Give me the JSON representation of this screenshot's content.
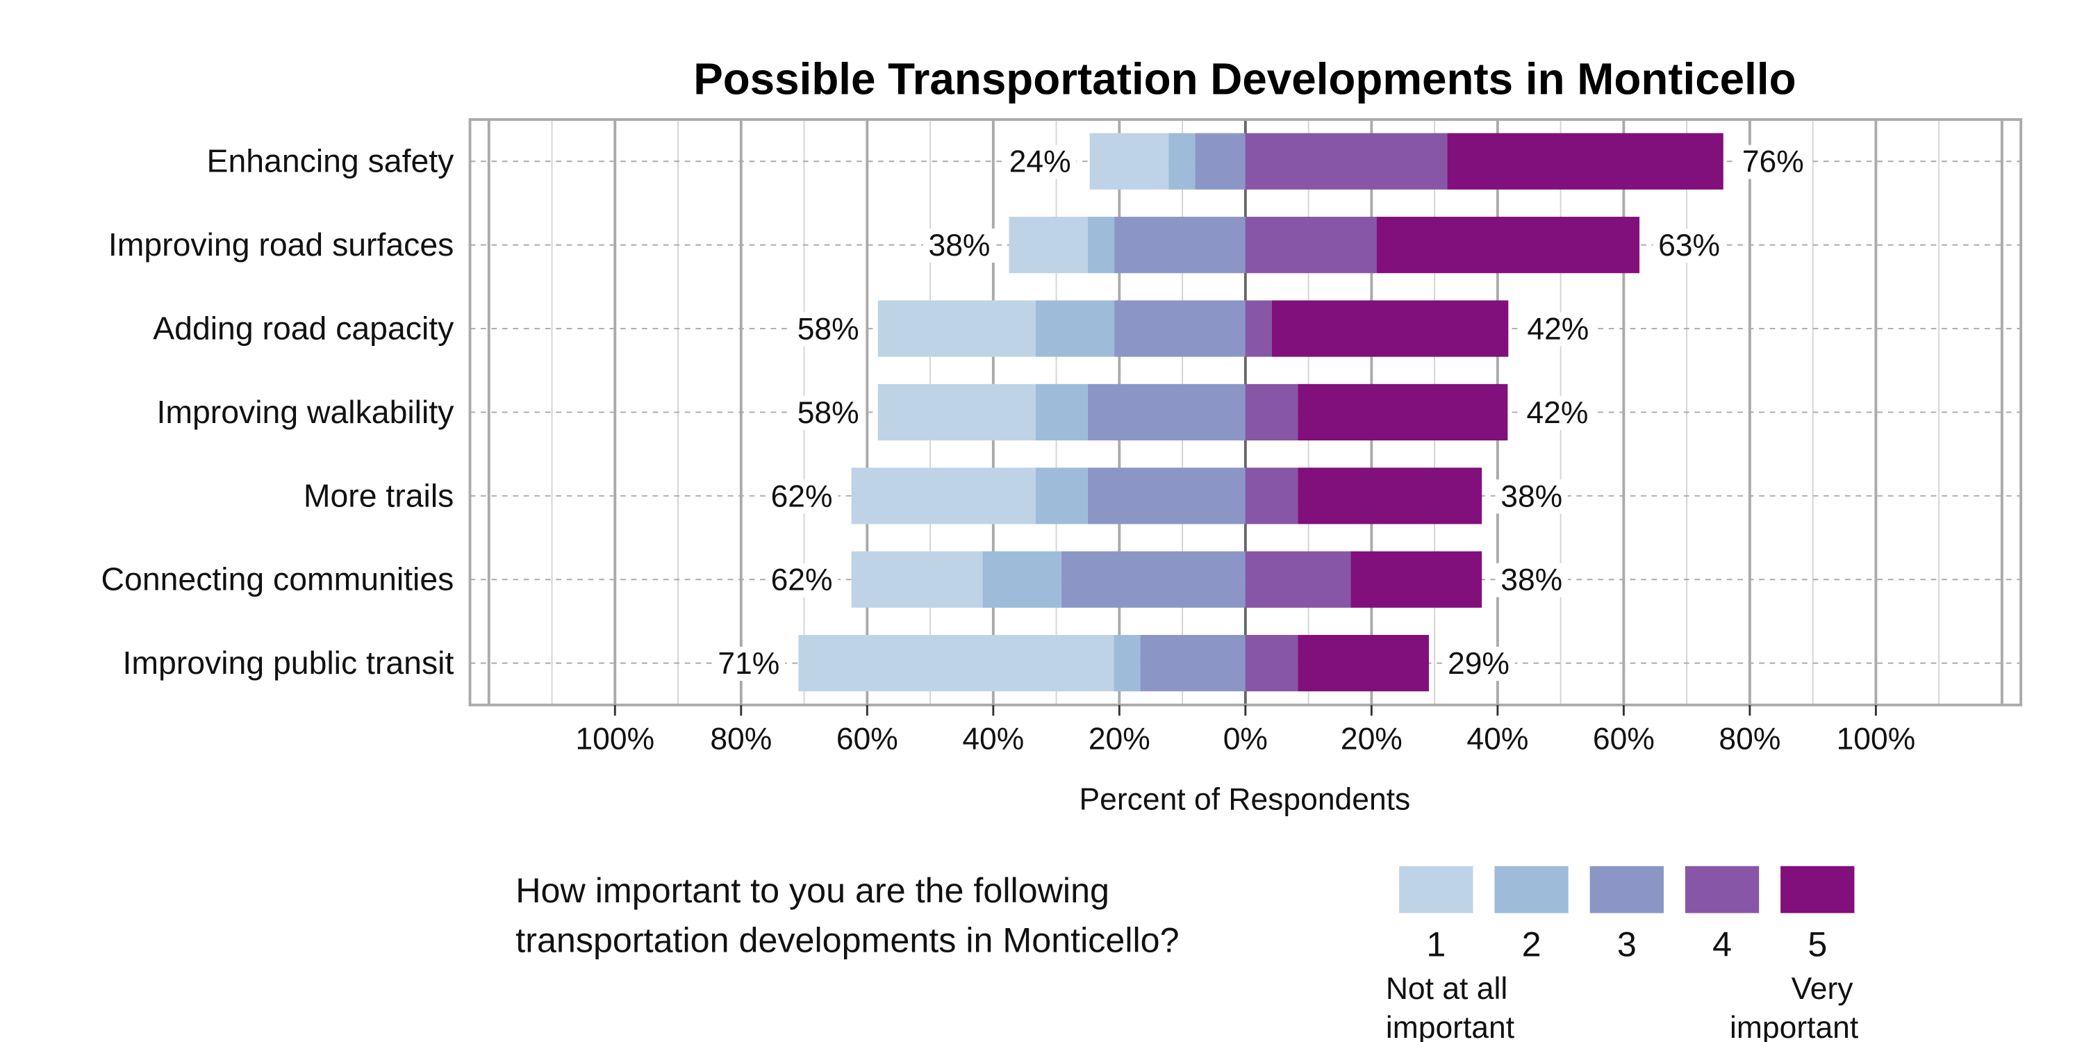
{
  "chart_data": {
    "type": "bar",
    "orientation": "horizontal",
    "stacked": "diverging",
    "title": "Possible Transportation Developments in Monticello",
    "xlabel": "Percent of Respondents",
    "xlim": [
      -123,
      123
    ],
    "x_tick_values": [
      -100,
      -80,
      -60,
      -40,
      -20,
      0,
      20,
      40,
      60,
      80,
      100
    ],
    "x_tick_labels": [
      "100%",
      "80%",
      "60%",
      "40%",
      "20%",
      "0%",
      "20%",
      "40%",
      "60%",
      "80%",
      "100%"
    ],
    "grid": true,
    "categories": [
      "Enhancing safety",
      "Improving road surfaces",
      "Adding road capacity",
      "Improving walkability",
      "More trails",
      "Connecting communities",
      "Improving public transit"
    ],
    "series": [
      {
        "name": "1",
        "side": "negative",
        "color": "#bfd3e6",
        "values": [
          12.5,
          12.5,
          25.0,
          25.0,
          29.2,
          20.8,
          50.0
        ]
      },
      {
        "name": "2",
        "side": "negative",
        "color": "#9ebcda",
        "values": [
          4.2,
          4.2,
          12.5,
          8.3,
          8.3,
          12.5,
          4.2
        ]
      },
      {
        "name": "3",
        "side": "negative",
        "color": "#8c96c6",
        "values": [
          8.0,
          20.8,
          20.8,
          25.0,
          25.0,
          29.2,
          16.7
        ]
      },
      {
        "name": "4",
        "side": "positive",
        "color": "#8856a7",
        "values": [
          32.0,
          20.8,
          4.2,
          8.3,
          8.3,
          16.7,
          8.3
        ]
      },
      {
        "name": "5",
        "side": "positive",
        "color": "#810f7c",
        "values": [
          43.8,
          41.7,
          37.5,
          33.3,
          29.2,
          20.8,
          20.8
        ]
      }
    ],
    "left_totals": [
      "24%",
      "38%",
      "58%",
      "58%",
      "62%",
      "62%",
      "71%"
    ],
    "right_totals": [
      "76%",
      "63%",
      "42%",
      "42%",
      "38%",
      "38%",
      "29%"
    ],
    "legend": {
      "placement": "bottom",
      "question_lines": [
        "How important to you are the following",
        "transportation developments in Monticello?"
      ],
      "low_anchor": [
        "Not at all",
        "important"
      ],
      "high_anchor": [
        "Very",
        "important"
      ]
    }
  }
}
